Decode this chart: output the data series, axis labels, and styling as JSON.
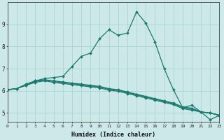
{
  "xlabel": "Humidex (Indice chaleur)",
  "ylabel": "",
  "background_color": "#cce8e8",
  "line_color": "#1a7a6e",
  "grid_color": "#aad4d0",
  "x_values": [
    0,
    1,
    2,
    3,
    4,
    5,
    6,
    7,
    8,
    9,
    10,
    11,
    12,
    13,
    14,
    15,
    16,
    17,
    18,
    19,
    20,
    21,
    22,
    23
  ],
  "lines": [
    [
      6.05,
      6.1,
      6.25,
      6.45,
      6.55,
      6.6,
      6.65,
      7.1,
      7.55,
      7.7,
      8.35,
      8.75,
      8.5,
      8.6,
      9.55,
      9.05,
      8.2,
      7.0,
      6.05,
      5.25,
      5.35,
      5.05,
      4.7,
      4.9
    ],
    [
      6.05,
      6.1,
      6.3,
      6.45,
      6.5,
      6.45,
      6.4,
      6.35,
      6.3,
      6.25,
      6.2,
      6.1,
      6.05,
      5.95,
      5.85,
      5.75,
      5.65,
      5.55,
      5.45,
      5.28,
      5.22,
      5.05,
      5.0,
      4.9
    ],
    [
      6.05,
      6.1,
      6.28,
      6.42,
      6.48,
      6.42,
      6.37,
      6.32,
      6.27,
      6.22,
      6.17,
      6.07,
      6.02,
      5.92,
      5.82,
      5.72,
      5.62,
      5.52,
      5.42,
      5.25,
      5.18,
      5.05,
      5.0,
      4.9
    ],
    [
      6.05,
      6.1,
      6.25,
      6.38,
      6.45,
      6.38,
      6.33,
      6.28,
      6.23,
      6.18,
      6.13,
      6.03,
      5.98,
      5.88,
      5.78,
      5.68,
      5.58,
      5.48,
      5.38,
      5.2,
      5.13,
      5.05,
      5.0,
      4.9
    ]
  ],
  "xlim": [
    0,
    23
  ],
  "ylim": [
    4.6,
    10.0
  ],
  "yticks": [
    5,
    6,
    7,
    8,
    9
  ],
  "xticks": [
    0,
    1,
    2,
    3,
    4,
    5,
    6,
    7,
    8,
    9,
    10,
    11,
    12,
    13,
    14,
    15,
    16,
    17,
    18,
    19,
    20,
    21,
    22,
    23
  ]
}
